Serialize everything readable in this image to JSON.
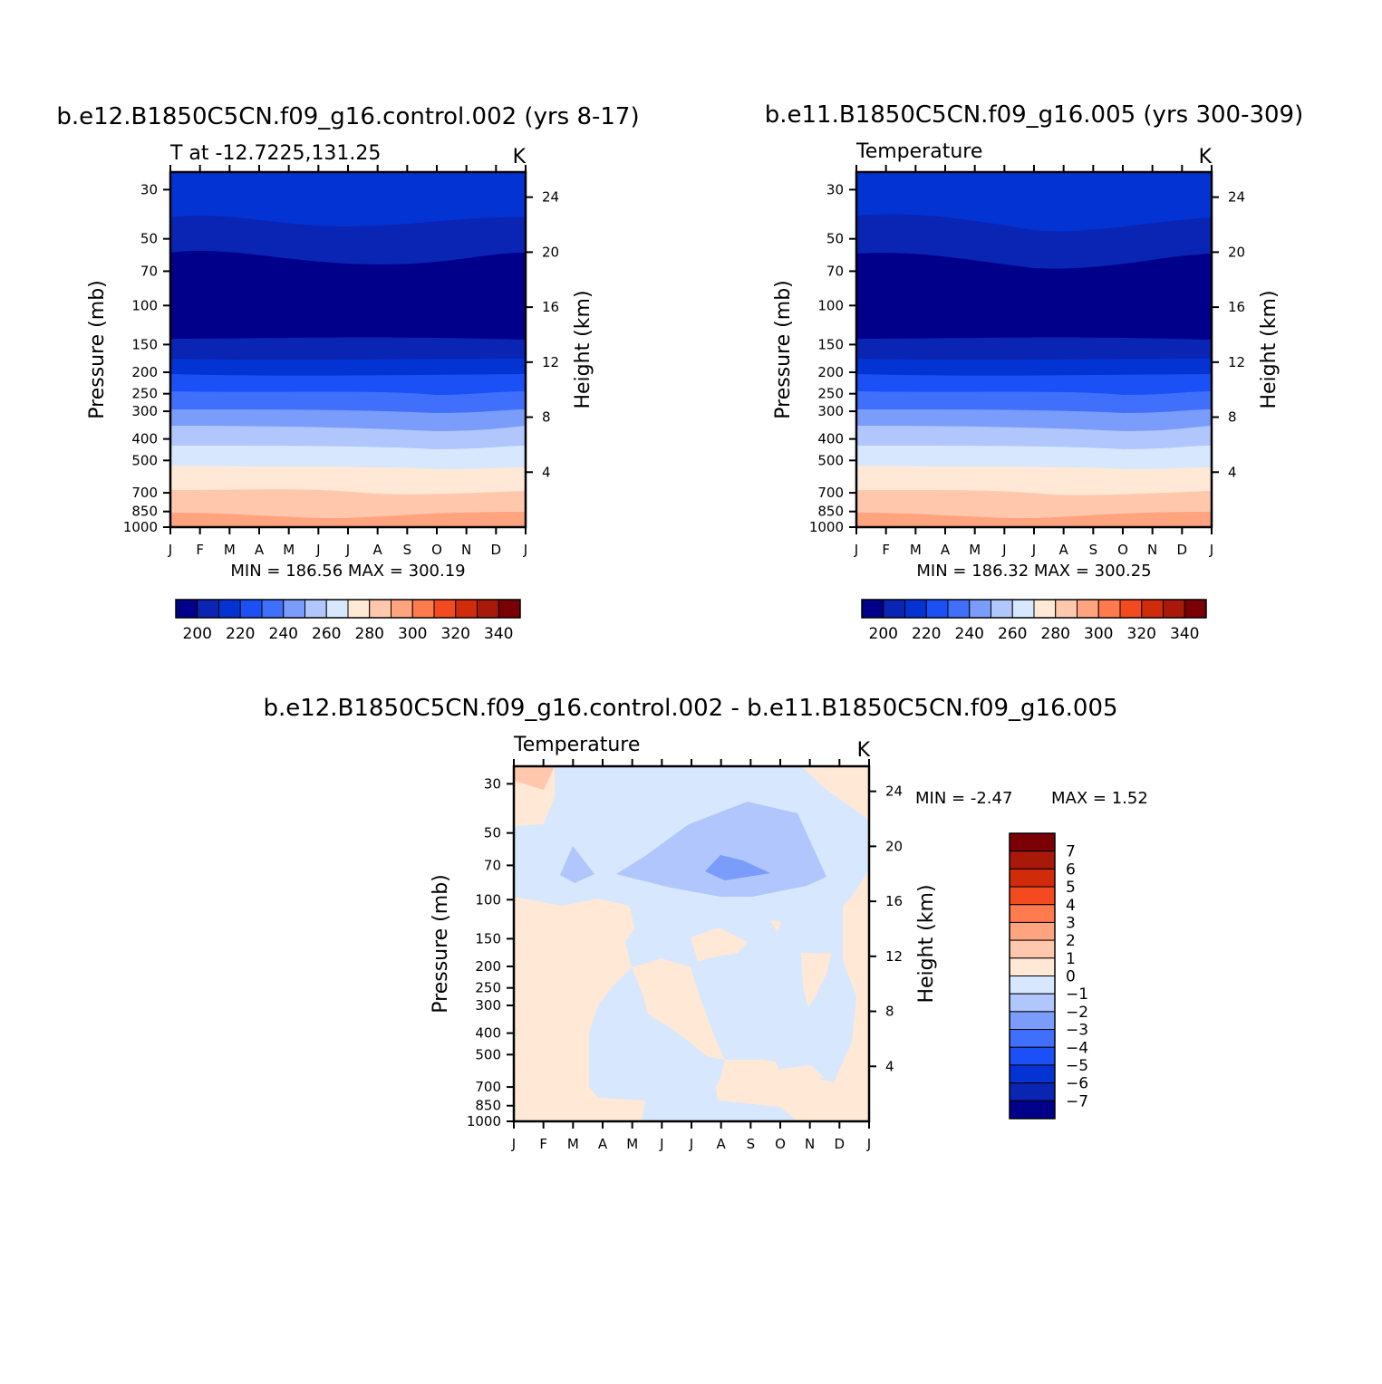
{
  "chart_data": [
    {
      "type": "contour",
      "title": "b.e12.B1850C5CN.f09_g16.control.002 (yrs 8-17)",
      "subtitle_left": "T at -12.7225,131.25",
      "units": "K",
      "xlabel": "",
      "ylabel": "Pressure (mb)",
      "y2label": "Height (km)",
      "xticks": [
        "J",
        "F",
        "M",
        "A",
        "M",
        "J",
        "J",
        "A",
        "S",
        "O",
        "N",
        "D",
        "J"
      ],
      "yticks": [
        30,
        50,
        70,
        100,
        150,
        200,
        250,
        300,
        400,
        500,
        700,
        850,
        1000
      ],
      "y2ticks": [
        24,
        20,
        16,
        12,
        8,
        4
      ],
      "ylim": [
        1000,
        25
      ],
      "min_max": "MIN =  186.56  MAX =  300.19",
      "colorbar_labels": [
        "200",
        "220",
        "240",
        "260",
        "280",
        "300",
        "320",
        "340"
      ],
      "contour_levels": [
        190,
        200,
        210,
        220,
        230,
        240,
        250,
        260,
        270,
        280,
        290,
        300,
        310,
        320,
        330,
        340,
        350
      ],
      "values_min": 186.56,
      "values_max": 300.19
    },
    {
      "type": "contour",
      "title": "b.e11.B1850C5CN.f09_g16.005 (yrs 300-309)",
      "subtitle_left": "Temperature",
      "units": "K",
      "xlabel": "",
      "ylabel": "Pressure (mb)",
      "y2label": "Height (km)",
      "xticks": [
        "J",
        "F",
        "M",
        "A",
        "M",
        "J",
        "J",
        "A",
        "S",
        "O",
        "N",
        "D",
        "J"
      ],
      "yticks": [
        30,
        50,
        70,
        100,
        150,
        200,
        250,
        300,
        400,
        500,
        700,
        850,
        1000
      ],
      "y2ticks": [
        24,
        20,
        16,
        12,
        8,
        4
      ],
      "ylim": [
        1000,
        25
      ],
      "min_max": "MIN =  186.32  MAX =  300.25",
      "colorbar_labels": [
        "200",
        "220",
        "240",
        "260",
        "280",
        "300",
        "320",
        "340"
      ],
      "contour_levels": [
        190,
        200,
        210,
        220,
        230,
        240,
        250,
        260,
        270,
        280,
        290,
        300,
        310,
        320,
        330,
        340,
        350
      ],
      "values_min": 186.32,
      "values_max": 300.25
    },
    {
      "type": "contour",
      "title": "b.e12.B1850C5CN.f09_g16.control.002 - b.e11.B1850C5CN.f09_g16.005",
      "subtitle_left": "Temperature",
      "units": "K",
      "xlabel": "",
      "ylabel": "Pressure (mb)",
      "y2label": "Height (km)",
      "xticks": [
        "J",
        "F",
        "M",
        "A",
        "M",
        "J",
        "J",
        "A",
        "S",
        "O",
        "N",
        "D",
        "J"
      ],
      "yticks": [
        30,
        50,
        70,
        100,
        150,
        200,
        250,
        300,
        400,
        500,
        700,
        850,
        1000
      ],
      "y2ticks": [
        24,
        20,
        16,
        12,
        8,
        4
      ],
      "ylim": [
        1000,
        25
      ],
      "min_max_min": "MIN =    -2.47",
      "min_max_max": "MAX =      1.52",
      "colorbar_labels": [
        "7",
        "6",
        "5",
        "4",
        "3",
        "2",
        "1",
        "0",
        "-1",
        "-2",
        "-3",
        "-4",
        "-5",
        "-6",
        "-7"
      ],
      "contour_levels": [
        8,
        7,
        6,
        5,
        4,
        3,
        2,
        1,
        0,
        -1,
        -2,
        -3,
        -4,
        -5,
        -6,
        -7,
        -8
      ],
      "values_min": -2.47,
      "values_max": 1.52
    }
  ],
  "colors": {
    "blue_red_16": [
      "#00008a",
      "#0a24b3",
      "#0433d4",
      "#1a50f5",
      "#406ffb",
      "#7a9cfb",
      "#b0c6fc",
      "#d6e7fe",
      "#ffe8d6",
      "#ffc8ad",
      "#ffa47f",
      "#ff7a4c",
      "#f34a20",
      "#d02c0c",
      "#a8190a",
      "#7a0006"
    ]
  }
}
